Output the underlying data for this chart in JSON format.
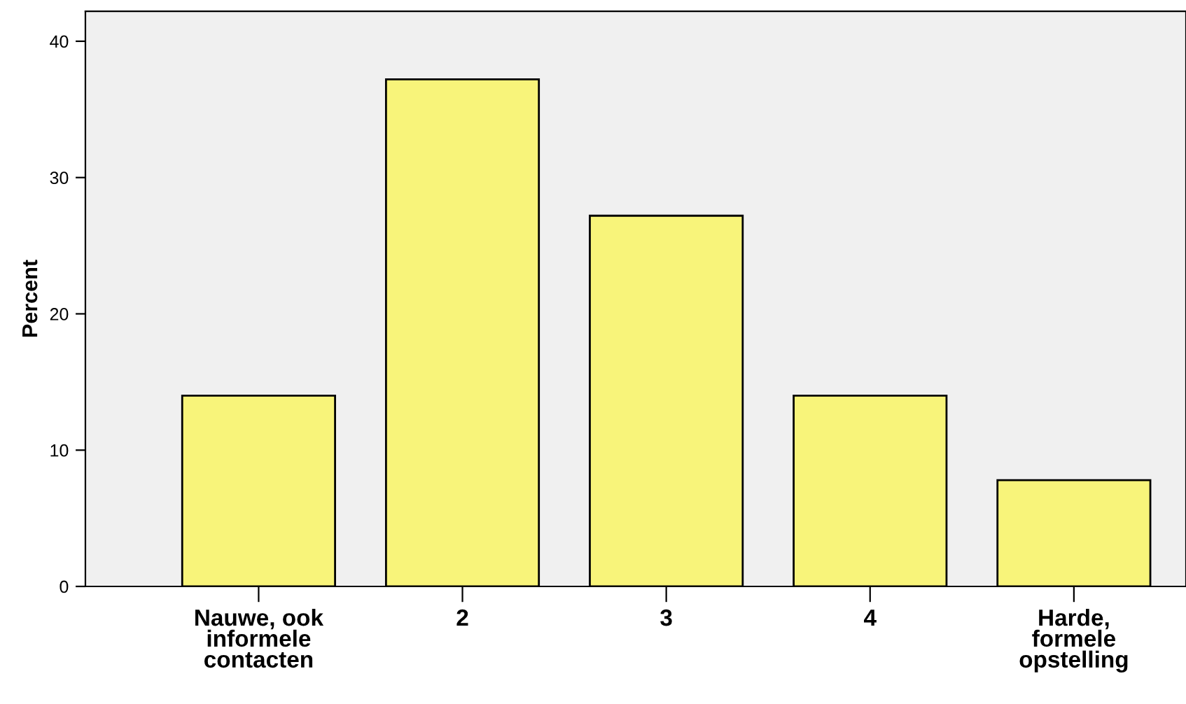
{
  "chart_data": {
    "type": "bar",
    "ylabel": "Percent",
    "categories": [
      "Nauwe, ook\ninformele\ncontacten",
      "2",
      "3",
      "4",
      "Harde,\nformele\nopstelling"
    ],
    "values": [
      14.0,
      37.2,
      27.2,
      14.0,
      7.8
    ],
    "color": "#f8f47a",
    "ylim": [
      0,
      42.2
    ],
    "yticks": [
      0,
      10,
      20,
      30,
      40
    ],
    "grid": false
  }
}
